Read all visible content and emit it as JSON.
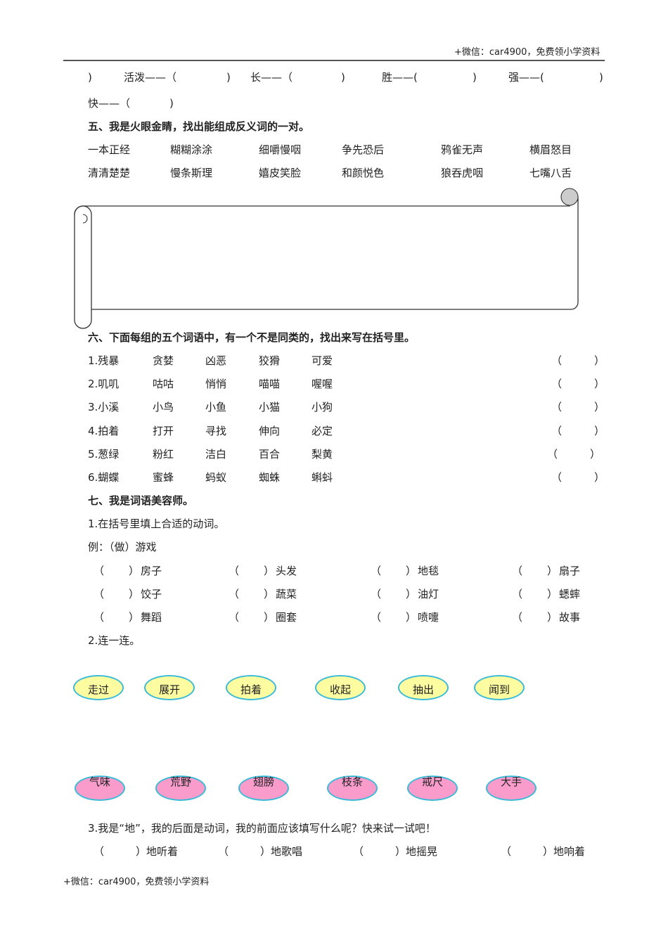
{
  "header": {
    "watermark": "+微信：car4900，免费领小学资料"
  },
  "antonyms_tail": {
    "row1": [
      ")",
      "活泼——（",
      ")",
      "长——（",
      ")",
      "胜——(",
      ")",
      "强——(",
      ")"
    ],
    "row2": [
      "快——（",
      ")"
    ]
  },
  "section5": {
    "title": "五、我是火眼金睛，找出能组成反义词的一对。",
    "rows": [
      [
        "一本正经",
        "糊糊涂涂",
        "细嚼慢咽",
        "争先恐后",
        "鸦雀无声",
        "横眉怒目"
      ],
      [
        "清清楚楚",
        "慢条斯理",
        "嬉皮笑脸",
        "和颜悦色",
        "狼吞虎咽",
        "七嘴八舌"
      ]
    ]
  },
  "section6": {
    "title": "六、下面每组的五个词语中，有一个不是同类的，找出来写在括号里。",
    "rows": [
      [
        "1.残暴",
        "贪婪",
        "凶恶",
        "狡猾",
        "可爱"
      ],
      [
        "2.叽叽",
        "咕咕",
        "悄悄",
        "喵喵",
        "喔喔"
      ],
      [
        "3.小溪",
        "小鸟",
        "小鱼",
        "小猫",
        "小狗"
      ],
      [
        "4.拍着",
        "打开",
        "寻找",
        "伸向",
        "必定"
      ],
      [
        "5.葱绿",
        "粉红",
        "洁白",
        "百合",
        "梨黄"
      ],
      [
        "6.蝴蝶",
        "蜜蜂",
        "蚂蚁",
        "蜘蛛",
        "蝌蚪"
      ]
    ],
    "open_paren": "（",
    "close_paren": "）"
  },
  "section7": {
    "title": "七、我是词语美容师。",
    "q1": "1.在括号里填上合适的动词。",
    "example": "例：（做）游戏",
    "open_paren": "（",
    "close_paren": "）",
    "q1_rows": [
      [
        "房子",
        "头发",
        "地毯",
        "扇子"
      ],
      [
        "饺子",
        "蔬菜",
        "油灯",
        "蟋蟀"
      ],
      [
        "舞蹈",
        "圈套",
        "喷嚏",
        "故事"
      ]
    ],
    "q2": "2.连一连。",
    "verbs": [
      "走过",
      "展开",
      "拍着",
      "收起",
      "抽出",
      "闻到"
    ],
    "nouns": [
      "气味",
      "荒野",
      "翅膀",
      "枝条",
      "戒尺",
      "大手"
    ],
    "q3": "3.我是“地”，我的后面是动词，我的前面应该填写什么呢？快来试一试吧！",
    "q3_items": [
      "地听着",
      "地歌唱",
      "地摇晃",
      "地响着"
    ]
  },
  "footer": {
    "watermark": "+微信：car4900，免费领小学资料"
  },
  "colors": {
    "verb_fill": "#fdfca0",
    "noun_fill": "#f99ccc",
    "ellipse_border": "#3bbbd8"
  }
}
